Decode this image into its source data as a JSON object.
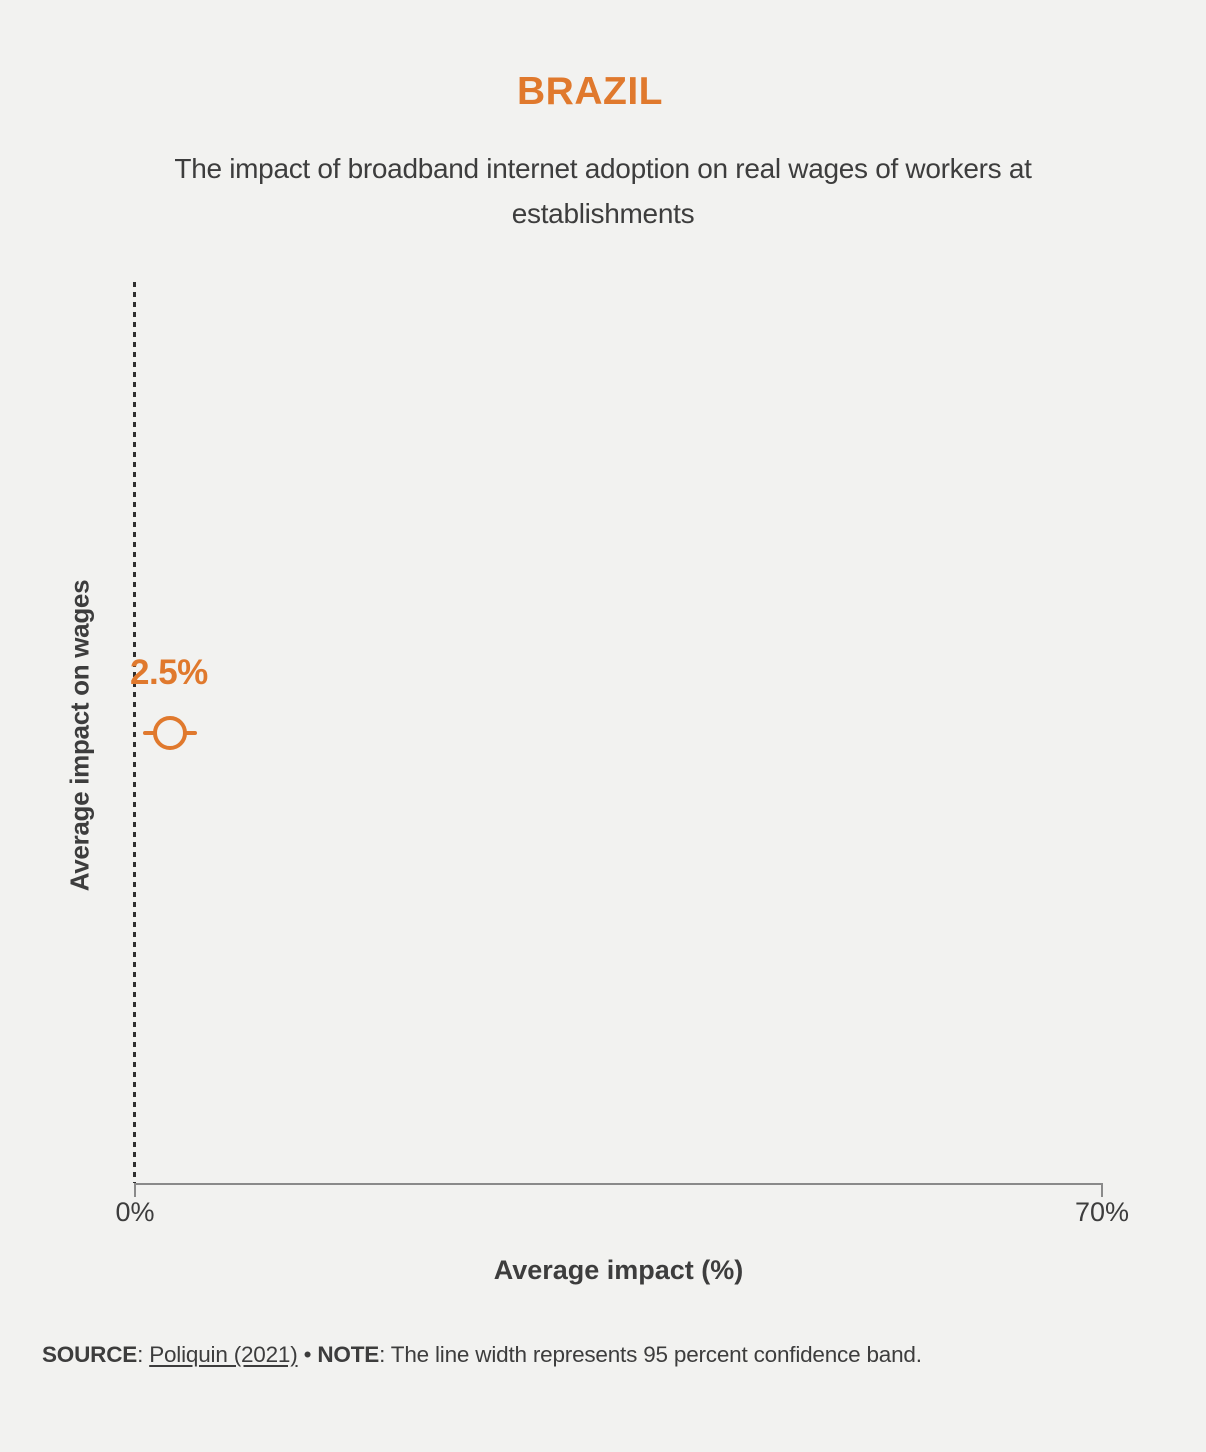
{
  "chart_data": {
    "type": "scatter",
    "title": "BRAZIL",
    "subtitle": "The impact of broadband internet adoption on real wages of workers at establishments",
    "xlabel": "Average impact (%)",
    "ylabel": "Average impact on wages",
    "xlim": [
      0,
      70
    ],
    "x_tick_labels": [
      "0%",
      "70%"
    ],
    "grid": false,
    "legend_position": "none",
    "zero_reference_line": "dotted vertical at 0%",
    "points": [
      {
        "series": "Average impact on wages",
        "x": 2.5,
        "label": "2.5%",
        "ci_low": 0.6,
        "ci_high": 4.5,
        "marker": "open-circle"
      }
    ]
  },
  "footer": {
    "source_label": "SOURCE",
    "colon": ":",
    "source_link": "Poliquin (2021)",
    "separator": "•",
    "note_label": "NOTE",
    "note_text": "The line width represents 95 percent confidence band."
  },
  "colors": {
    "accent_orange": "#e0792d",
    "text_dark": "#3d3d3d",
    "axis_gray": "#8a8a8a",
    "background": "#f2f2f0"
  }
}
